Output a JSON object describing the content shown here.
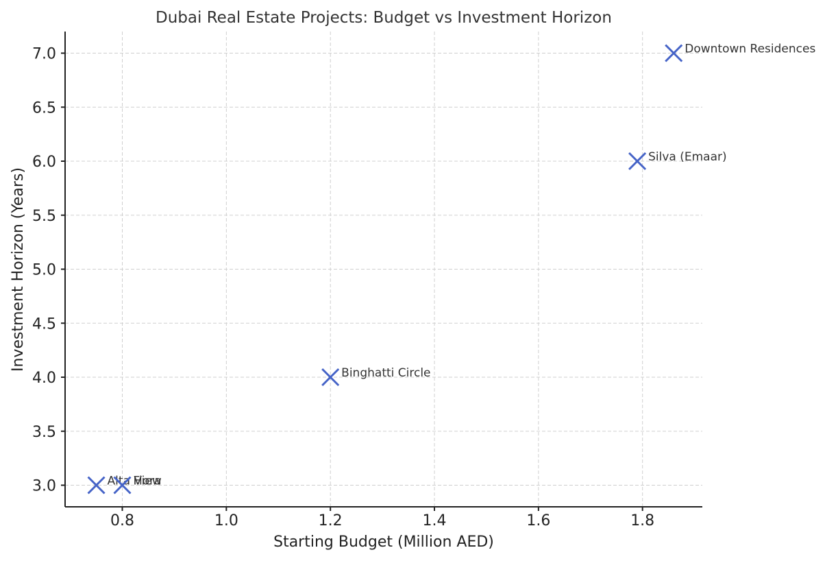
{
  "chart_data": {
    "type": "scatter",
    "title": "Dubai Real Estate Projects: Budget vs Investment Horizon",
    "xlabel": "Starting Budget (Million AED)",
    "ylabel": "Investment Horizon (Years)",
    "xlim": [
      0.69,
      1.915
    ],
    "ylim": [
      2.8,
      7.2
    ],
    "xticks": [
      0.8,
      1.0,
      1.2,
      1.4,
      1.6,
      1.8
    ],
    "xtick_labels": [
      "0.8",
      "1.0",
      "1.2",
      "1.4",
      "1.6",
      "1.8"
    ],
    "yticks": [
      3.0,
      3.5,
      4.0,
      4.5,
      5.0,
      5.5,
      6.0,
      6.5,
      7.0
    ],
    "ytick_labels": [
      "3.0",
      "3.5",
      "4.0",
      "4.5",
      "5.0",
      "5.5",
      "6.0",
      "6.5",
      "7.0"
    ],
    "grid": true,
    "marker": "x",
    "color": "#4563c7",
    "points": [
      {
        "label": "Alta View",
        "x": 0.75,
        "y": 3.0
      },
      {
        "label": "Fiora",
        "x": 0.8,
        "y": 3.0
      },
      {
        "label": "Binghatti Circle",
        "x": 1.2,
        "y": 4.0
      },
      {
        "label": "Silva (Emaar)",
        "x": 1.79,
        "y": 6.0
      },
      {
        "label": "Downtown Residences",
        "x": 1.86,
        "y": 7.0
      }
    ]
  }
}
